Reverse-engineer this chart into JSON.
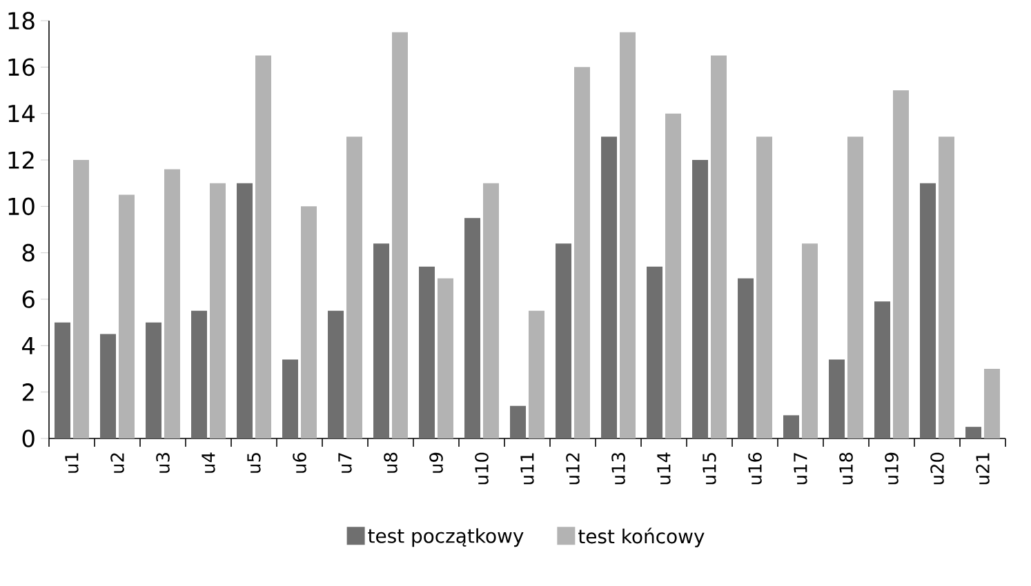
{
  "chart_data": {
    "type": "bar",
    "categories": [
      "u1",
      "u2",
      "u3",
      "u4",
      "u5",
      "u6",
      "u7",
      "u8",
      "u9",
      "u10",
      "u11",
      "u12",
      "u13",
      "u14",
      "u15",
      "u16",
      "u17",
      "u18",
      "u19",
      "u20",
      "u21"
    ],
    "series": [
      {
        "name": "test początkowy",
        "color": "#6f6f6f",
        "values": [
          5,
          4.5,
          5,
          5.5,
          11,
          3.4,
          5.5,
          8.4,
          7.4,
          9.5,
          1.4,
          8.4,
          13,
          7.4,
          12,
          6.9,
          1,
          3.4,
          5.9,
          11,
          0.5
        ]
      },
      {
        "name": "test końcowy",
        "color": "#b3b3b3",
        "values": [
          12,
          10.5,
          11.6,
          11,
          16.5,
          10,
          13,
          17.5,
          6.9,
          11,
          5.5,
          16,
          17.5,
          14,
          16.5,
          13,
          8.4,
          13,
          15,
          13,
          3
        ]
      }
    ],
    "ylim": [
      0,
      18
    ],
    "yticks": [
      0,
      2,
      4,
      6,
      8,
      10,
      12,
      14,
      16,
      18
    ],
    "grid": false,
    "legend": "bottom"
  }
}
